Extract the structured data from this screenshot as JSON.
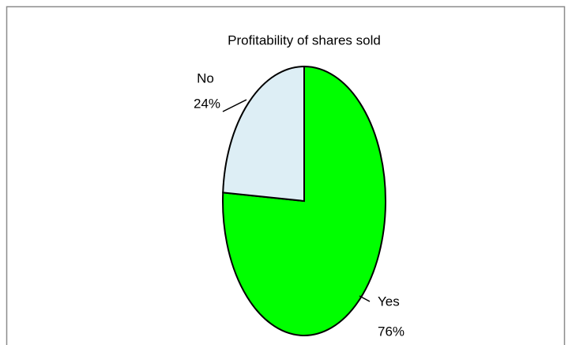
{
  "chart_data": {
    "type": "pie",
    "title": "Profitability of shares sold",
    "categories": [
      "Yes",
      "No"
    ],
    "values": [
      76,
      24
    ],
    "value_labels": [
      "76%",
      "24%"
    ],
    "colors": [
      "#00ff00",
      "#ddeef5"
    ]
  }
}
